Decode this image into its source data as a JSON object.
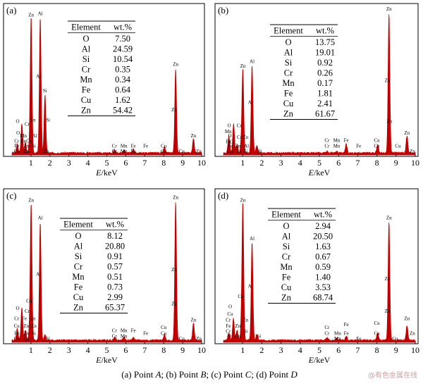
{
  "caption": {
    "parts": [
      {
        "text": "(a)  Point ",
        "italic": false
      },
      {
        "text": "A",
        "italic": true
      },
      {
        "text": ";  (b)  Point ",
        "italic": false
      },
      {
        "text": "B",
        "italic": true
      },
      {
        "text": ";  (c)  Point ",
        "italic": false
      },
      {
        "text": "C",
        "italic": true
      },
      {
        "text": "; (d) Point ",
        "italic": false
      },
      {
        "text": "D",
        "italic": true
      }
    ]
  },
  "watermark": "@有色金属在线",
  "colors": {
    "spectrum": "#c00000",
    "axis": "#000000",
    "watermark": "#c9a3a8"
  },
  "chart_data": [
    {
      "panel": "(a)",
      "type": "table",
      "xlabel_italic": "E",
      "xlabel_unit": "/keV",
      "xlim": [
        0,
        10
      ],
      "xticks": [
        1,
        2,
        3,
        4,
        5,
        6,
        7,
        8,
        9,
        10
      ],
      "table": {
        "headers": [
          "Element",
          "wt.%"
        ],
        "rows": [
          [
            "O",
            "7.50"
          ],
          [
            "Al",
            "24.59"
          ],
          [
            "Si",
            "10.54"
          ],
          [
            "Cr",
            "0.35"
          ],
          [
            "Mn",
            "0.34"
          ],
          [
            "Fe",
            "0.64"
          ],
          [
            "Cu",
            "1.62"
          ],
          [
            "Zn",
            "54.42"
          ]
        ]
      },
      "peaks": [
        [
          0.28,
          0.06
        ],
        [
          0.52,
          0.2
        ],
        [
          0.71,
          0.07
        ],
        [
          0.93,
          0.06
        ],
        [
          1.01,
          0.92
        ],
        [
          1.49,
          0.93
        ],
        [
          1.74,
          0.4
        ],
        [
          5.41,
          0.02
        ],
        [
          5.9,
          0.02
        ],
        [
          6.4,
          0.03
        ],
        [
          8.04,
          0.04
        ],
        [
          8.63,
          0.58
        ],
        [
          9.57,
          0.1
        ]
      ],
      "labels": [
        {
          "t": "Zn",
          "x": 1.01,
          "y": 0.95
        },
        {
          "t": "Al",
          "x": 1.49,
          "y": 0.96
        },
        {
          "t": "Al",
          "x": 1.4,
          "y": 0.53
        },
        {
          "t": "Si",
          "x": 1.74,
          "y": 0.43
        },
        {
          "t": "Si",
          "x": 1.9,
          "y": 0.23
        },
        {
          "t": "Zn",
          "x": 1.1,
          "y": 0.23
        },
        {
          "t": "O",
          "x": 0.3,
          "y": 0.22
        },
        {
          "t": "Cr",
          "x": 0.8,
          "y": 0.2
        },
        {
          "t": "O",
          "x": 0.32,
          "y": 0.14
        },
        {
          "t": "Mn",
          "x": 0.6,
          "y": 0.12
        },
        {
          "t": "Al",
          "x": 1.2,
          "y": 0.12
        },
        {
          "t": "Cr",
          "x": 0.25,
          "y": 0.085
        },
        {
          "t": "Fe",
          "x": 0.6,
          "y": 0.085
        },
        {
          "t": "Cu",
          "x": 0.9,
          "y": 0.085
        },
        {
          "t": "Fe",
          "x": 0.25,
          "y": 0.05
        },
        {
          "t": "Zn",
          "x": 0.75,
          "y": 0.05
        },
        {
          "t": "Si",
          "x": 1.15,
          "y": 0.05
        },
        {
          "t": "Cu",
          "x": 0.25,
          "y": 0.015
        },
        {
          "t": "Zn",
          "x": 0.75,
          "y": 0.015
        },
        {
          "t": "Zn",
          "x": 1.8,
          "y": 0.015
        },
        {
          "t": "Zn",
          "x": 8.63,
          "y": 0.61
        },
        {
          "t": "Zn",
          "x": 8.55,
          "y": 0.3
        },
        {
          "t": "Cr",
          "x": 5.4,
          "y": 0.05
        },
        {
          "t": "Mn",
          "x": 5.9,
          "y": 0.05
        },
        {
          "t": "Fe",
          "x": 6.4,
          "y": 0.05
        },
        {
          "t": "Fe",
          "x": 7.05,
          "y": 0.05
        },
        {
          "t": "Cu",
          "x": 8.0,
          "y": 0.05
        },
        {
          "t": "Cr",
          "x": 5.4,
          "y": 0.015
        },
        {
          "t": "Mn",
          "x": 5.9,
          "y": 0.015
        },
        {
          "t": "Fe",
          "x": 6.4,
          "y": 0.015
        },
        {
          "t": "Cu",
          "x": 8.0,
          "y": 0.015
        },
        {
          "t": "Zn",
          "x": 9.57,
          "y": 0.12
        },
        {
          "t": "Zn",
          "x": 9.85,
          "y": 0.015
        },
        {
          "t": "Cu",
          "x": 8.95,
          "y": 0.015
        }
      ]
    },
    {
      "panel": "(b)",
      "type": "table",
      "xlabel_italic": "E",
      "xlabel_unit": "/keV",
      "xlim": [
        0,
        10
      ],
      "xticks": [
        1,
        2,
        3,
        4,
        5,
        6,
        7,
        8,
        9,
        10
      ],
      "table": {
        "headers": [
          "Element",
          "wt.%"
        ],
        "rows": [
          [
            "O",
            "13.75"
          ],
          [
            "Al",
            "19.01"
          ],
          [
            "Si",
            "0.92"
          ],
          [
            "Cr",
            "0.26"
          ],
          [
            "Mn",
            "0.17"
          ],
          [
            "Fe",
            "1.81"
          ],
          [
            "Cu",
            "2.41"
          ],
          [
            "Zn",
            "61.67"
          ]
        ]
      },
      "peaks": [
        [
          0.28,
          0.12
        ],
        [
          0.53,
          0.2
        ],
        [
          0.71,
          0.06
        ],
        [
          0.93,
          0.06
        ],
        [
          1.01,
          0.57
        ],
        [
          1.49,
          0.6
        ],
        [
          1.74,
          0.05
        ],
        [
          5.41,
          0.01
        ],
        [
          5.9,
          0.01
        ],
        [
          6.4,
          0.06
        ],
        [
          8.04,
          0.06
        ],
        [
          8.63,
          0.96
        ],
        [
          9.57,
          0.12
        ]
      ],
      "labels": [
        {
          "t": "Zn",
          "x": 8.63,
          "y": 0.99
        },
        {
          "t": "Al",
          "x": 1.49,
          "y": 0.63
        },
        {
          "t": "Zn",
          "x": 1.01,
          "y": 0.6
        },
        {
          "t": "Al",
          "x": 1.4,
          "y": 0.35
        },
        {
          "t": "Zn",
          "x": 8.55,
          "y": 0.5
        },
        {
          "t": "Zn",
          "x": 8.65,
          "y": 0.22
        },
        {
          "t": "O",
          "x": 0.3,
          "y": 0.19
        },
        {
          "t": "Cr",
          "x": 0.82,
          "y": 0.19
        },
        {
          "t": "Mn",
          "x": 0.25,
          "y": 0.15
        },
        {
          "t": "O",
          "x": 0.33,
          "y": 0.12
        },
        {
          "t": "Cu",
          "x": 0.85,
          "y": 0.11
        },
        {
          "t": "Zn",
          "x": 1.15,
          "y": 0.11
        },
        {
          "t": "Fe",
          "x": 0.25,
          "y": 0.08
        },
        {
          "t": "Cr",
          "x": 0.45,
          "y": 0.08
        },
        {
          "t": "Fe",
          "x": 0.35,
          "y": 0.05
        },
        {
          "t": "Zn",
          "x": 0.75,
          "y": 0.05
        },
        {
          "t": "Al",
          "x": 1.2,
          "y": 0.05
        },
        {
          "t": "Cu",
          "x": 0.35,
          "y": 0.015
        },
        {
          "t": "Zn",
          "x": 0.8,
          "y": 0.015
        },
        {
          "t": "Si",
          "x": 1.15,
          "y": 0.015
        },
        {
          "t": "Si",
          "x": 1.9,
          "y": 0.015
        },
        {
          "t": "Cr",
          "x": 5.4,
          "y": 0.09
        },
        {
          "t": "Mn",
          "x": 5.9,
          "y": 0.09
        },
        {
          "t": "Fe",
          "x": 6.4,
          "y": 0.09
        },
        {
          "t": "Cr",
          "x": 5.4,
          "y": 0.05
        },
        {
          "t": "Mn",
          "x": 5.9,
          "y": 0.05
        },
        {
          "t": "Fe",
          "x": 7.05,
          "y": 0.05
        },
        {
          "t": "Cu",
          "x": 8.0,
          "y": 0.09
        },
        {
          "t": "Cu",
          "x": 8.0,
          "y": 0.05
        },
        {
          "t": "Zn",
          "x": 9.57,
          "y": 0.14
        },
        {
          "t": "Zn",
          "x": 9.85,
          "y": 0.015
        },
        {
          "t": "Cu",
          "x": 9.1,
          "y": 0.05
        }
      ]
    },
    {
      "panel": "(c)",
      "type": "table",
      "xlabel_italic": "E",
      "xlabel_unit": "/keV",
      "xlim": [
        0,
        10
      ],
      "xticks": [
        1,
        2,
        3,
        4,
        5,
        6,
        7,
        8,
        9,
        10
      ],
      "table": {
        "headers": [
          "Element",
          "wt.%"
        ],
        "rows": [
          [
            "O",
            "8.12"
          ],
          [
            "Al",
            "20.80"
          ],
          [
            "Si",
            "0.91"
          ],
          [
            "Cr",
            "0.57"
          ],
          [
            "Mn",
            "0.51"
          ],
          [
            "Fe",
            "0.73"
          ],
          [
            "Cu",
            "2.99"
          ],
          [
            "Zn",
            "65.37"
          ]
        ]
      },
      "peaks": [
        [
          0.28,
          0.08
        ],
        [
          0.52,
          0.22
        ],
        [
          0.71,
          0.07
        ],
        [
          0.93,
          0.06
        ],
        [
          1.01,
          0.92
        ],
        [
          1.49,
          0.8
        ],
        [
          1.74,
          0.04
        ],
        [
          5.41,
          0.02
        ],
        [
          5.9,
          0.02
        ],
        [
          6.4,
          0.02
        ],
        [
          8.04,
          0.04
        ],
        [
          8.63,
          0.94
        ],
        [
          9.57,
          0.12
        ]
      ],
      "labels": [
        {
          "t": "Zn",
          "x": 1.01,
          "y": 0.95
        },
        {
          "t": "Zn",
          "x": 8.63,
          "y": 0.97
        },
        {
          "t": "Al",
          "x": 1.49,
          "y": 0.83
        },
        {
          "t": "Al",
          "x": 1.4,
          "y": 0.45
        },
        {
          "t": "Zn",
          "x": 8.55,
          "y": 0.48
        },
        {
          "t": "Zn",
          "x": 8.55,
          "y": 0.25
        },
        {
          "t": "Cu",
          "x": 0.9,
          "y": 0.27
        },
        {
          "t": "O",
          "x": 0.3,
          "y": 0.22
        },
        {
          "t": "Cr",
          "x": 0.8,
          "y": 0.2
        },
        {
          "t": "Cr",
          "x": 0.25,
          "y": 0.15
        },
        {
          "t": "Fe",
          "x": 0.65,
          "y": 0.15
        },
        {
          "t": "Zn",
          "x": 1.1,
          "y": 0.15
        },
        {
          "t": "Cu",
          "x": 0.25,
          "y": 0.1
        },
        {
          "t": "Zn",
          "x": 0.75,
          "y": 0.1
        },
        {
          "t": "Zn",
          "x": 1.15,
          "y": 0.1
        },
        {
          "t": "Fe",
          "x": 0.25,
          "y": 0.05
        },
        {
          "t": "Zn",
          "x": 0.75,
          "y": 0.05
        },
        {
          "t": "Si",
          "x": 1.15,
          "y": 0.05
        },
        {
          "t": "Cu",
          "x": 0.25,
          "y": 0.015
        },
        {
          "t": "Cu",
          "x": 0.75,
          "y": 0.015
        },
        {
          "t": "Si",
          "x": 1.9,
          "y": 0.015
        },
        {
          "t": "Cr",
          "x": 5.4,
          "y": 0.07
        },
        {
          "t": "Mn",
          "x": 5.9,
          "y": 0.07
        },
        {
          "t": "Fe",
          "x": 6.4,
          "y": 0.07
        },
        {
          "t": "Cr",
          "x": 5.4,
          "y": 0.03
        },
        {
          "t": "Mn",
          "x": 5.9,
          "y": 0.03
        },
        {
          "t": "Fe",
          "x": 7.05,
          "y": 0.05
        },
        {
          "t": "Cu",
          "x": 8.0,
          "y": 0.09
        },
        {
          "t": "Cu",
          "x": 8.0,
          "y": 0.05
        },
        {
          "t": "Zn",
          "x": 9.57,
          "y": 0.14
        },
        {
          "t": "Zn",
          "x": 9.85,
          "y": 0.015
        },
        {
          "t": "Cu",
          "x": 8.95,
          "y": 0.015
        }
      ]
    },
    {
      "panel": "(d)",
      "type": "table",
      "xlabel_italic": "E",
      "xlabel_unit": "/keV",
      "xlim": [
        0,
        10
      ],
      "xticks": [
        1,
        2,
        3,
        4,
        5,
        6,
        7,
        8,
        9,
        10
      ],
      "table": {
        "headers": [
          "Element",
          "wt.%"
        ],
        "rows": [
          [
            "O",
            "2.94"
          ],
          [
            "Al",
            "20.50"
          ],
          [
            "Si",
            "1.63"
          ],
          [
            "Cr",
            "0.67"
          ],
          [
            "Mn",
            "0.59"
          ],
          [
            "Fe",
            "1.40"
          ],
          [
            "Cu",
            "3.53"
          ],
          [
            "Zn",
            "68.74"
          ]
        ]
      },
      "peaks": [
        [
          0.28,
          0.05
        ],
        [
          0.52,
          0.15
        ],
        [
          0.71,
          0.07
        ],
        [
          0.93,
          0.08
        ],
        [
          1.01,
          0.92
        ],
        [
          1.49,
          0.66
        ],
        [
          1.74,
          0.04
        ],
        [
          5.41,
          0.02
        ],
        [
          5.9,
          0.02
        ],
        [
          6.4,
          0.03
        ],
        [
          8.04,
          0.05
        ],
        [
          8.63,
          0.8
        ],
        [
          9.57,
          0.1
        ]
      ],
      "labels": [
        {
          "t": "Zn",
          "x": 1.01,
          "y": 0.95
        },
        {
          "t": "Al",
          "x": 1.49,
          "y": 0.69
        },
        {
          "t": "Zn",
          "x": 8.63,
          "y": 0.83
        },
        {
          "t": "Al",
          "x": 1.4,
          "y": 0.37
        },
        {
          "t": "Zn",
          "x": 8.55,
          "y": 0.42
        },
        {
          "t": "Zn",
          "x": 8.55,
          "y": 0.2
        },
        {
          "t": "Cu",
          "x": 0.9,
          "y": 0.3
        },
        {
          "t": "O",
          "x": 0.35,
          "y": 0.23
        },
        {
          "t": "Cu",
          "x": 0.35,
          "y": 0.18
        },
        {
          "t": "Cr",
          "x": 0.25,
          "y": 0.14
        },
        {
          "t": "Zn",
          "x": 1.15,
          "y": 0.14
        },
        {
          "t": "Fe",
          "x": 0.25,
          "y": 0.1
        },
        {
          "t": "Zn",
          "x": 0.75,
          "y": 0.1
        },
        {
          "t": "Cr",
          "x": 0.25,
          "y": 0.065
        },
        {
          "t": "Si",
          "x": 1.15,
          "y": 0.065
        },
        {
          "t": "O",
          "x": 0.3,
          "y": 0.03
        },
        {
          "t": "Cu",
          "x": 0.75,
          "y": 0.03
        },
        {
          "t": "Si",
          "x": 1.85,
          "y": 0.03
        },
        {
          "t": "Cr",
          "x": 5.4,
          "y": 0.09
        },
        {
          "t": "Fe",
          "x": 6.4,
          "y": 0.11
        },
        {
          "t": "Cr",
          "x": 5.4,
          "y": 0.05
        },
        {
          "t": "Mn",
          "x": 5.95,
          "y": 0.05
        },
        {
          "t": "Fe",
          "x": 6.4,
          "y": 0.05
        },
        {
          "t": "Mn",
          "x": 5.95,
          "y": 0.015
        },
        {
          "t": "Fe",
          "x": 7.05,
          "y": 0.015
        },
        {
          "t": "Cu",
          "x": 8.0,
          "y": 0.12
        },
        {
          "t": "Cu",
          "x": 8.0,
          "y": 0.05
        },
        {
          "t": "Cu",
          "x": 8.95,
          "y": 0.015
        },
        {
          "t": "Zn",
          "x": 9.57,
          "y": 0.15
        },
        {
          "t": "Zn",
          "x": 9.85,
          "y": 0.05
        }
      ]
    }
  ]
}
